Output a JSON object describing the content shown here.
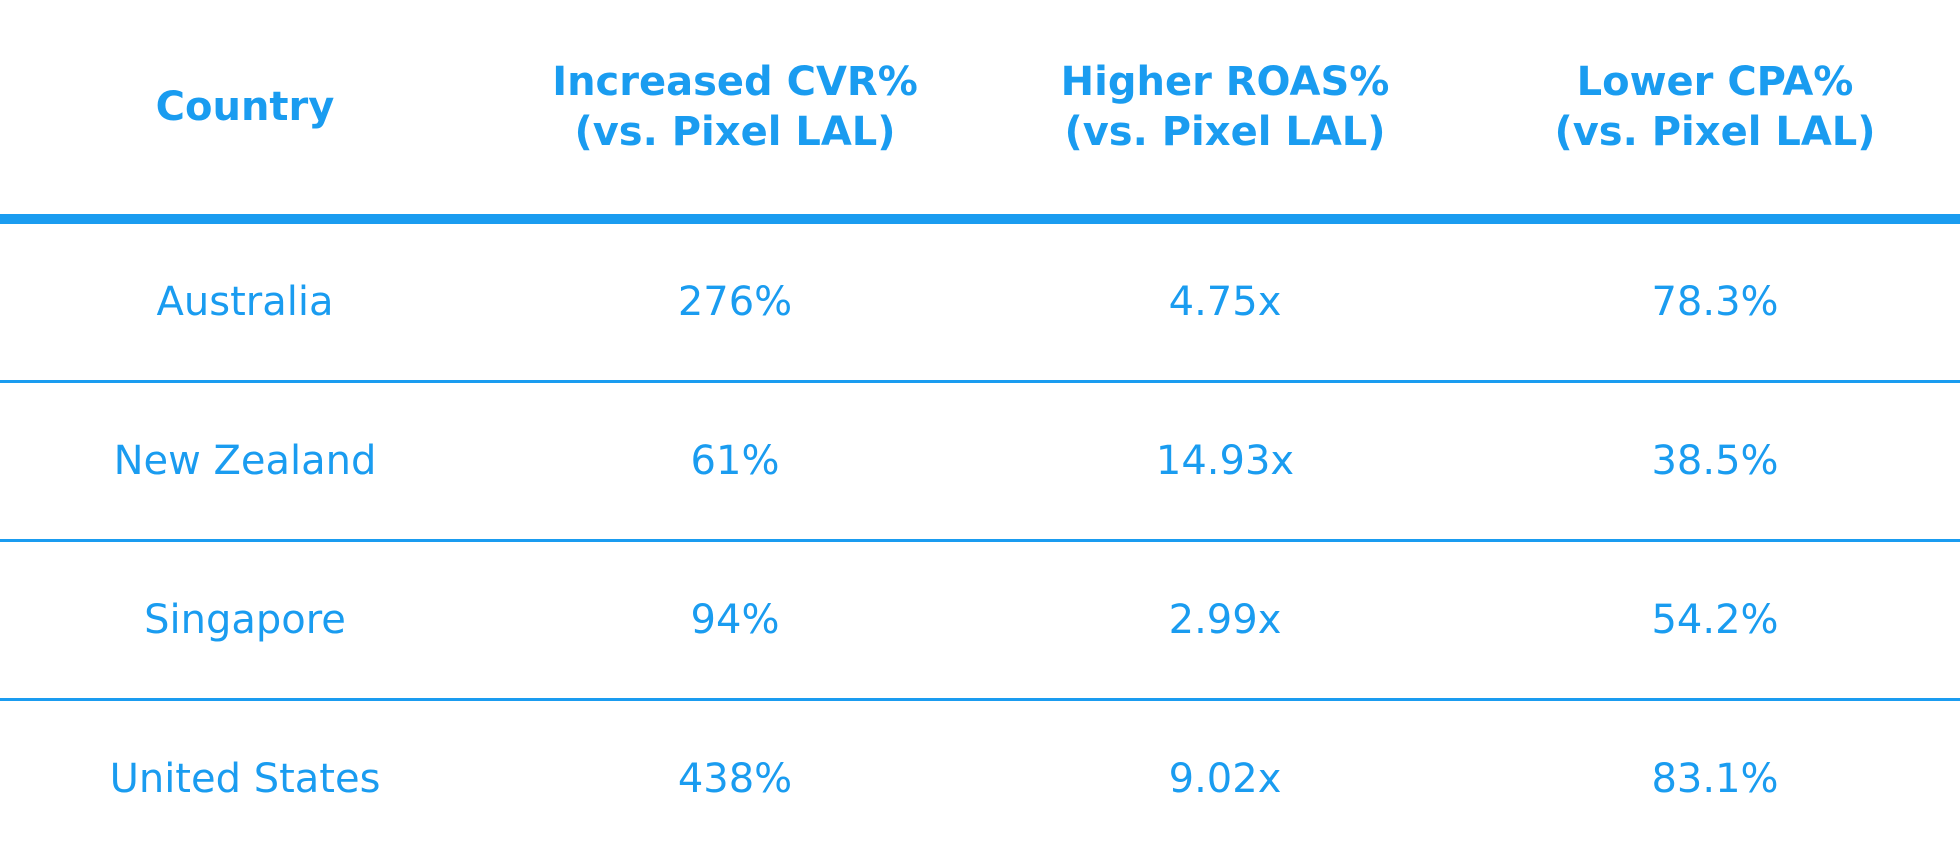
{
  "table": {
    "header": [
      "Country",
      "Increased CVR%\n(vs. Pixel LAL)",
      "Higher ROAS%\n(vs. Pixel LAL)",
      "Lower CPA%\n(vs. Pixel LAL)"
    ],
    "rows": [
      [
        "Australia",
        "276%",
        "4.75x",
        "78.3%"
      ],
      [
        "New Zealand",
        "61%",
        "14.93x",
        "38.5%"
      ],
      [
        "Singapore",
        "94%",
        "2.99x",
        "54.2%"
      ],
      [
        "United States",
        "438%",
        "9.02x",
        "83.1%"
      ]
    ]
  }
}
